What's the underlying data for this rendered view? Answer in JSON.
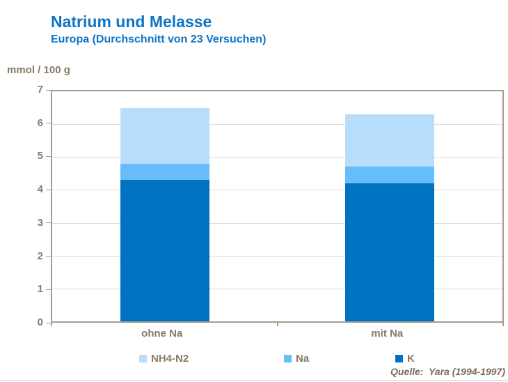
{
  "header": {
    "title": "Natrium und Melasse",
    "subtitle": "Europa (Durchschnitt von 23 Versuchen)"
  },
  "source_note": "Quelle:  Yara (1994-1997)",
  "colors": {
    "title_text": "#0E74C6",
    "axis_text": "#8A7966",
    "source_text": "#7A695A",
    "plot_border": "#A79C8E",
    "gridline": "#DBDBDB"
  },
  "legend": {
    "position": "bottom",
    "items": [
      {
        "label": "NH4-N2",
        "color": "#B8DDFB"
      },
      {
        "label": "Na",
        "color": "#66BDFA"
      },
      {
        "label": "K",
        "color": "#0072C1"
      }
    ]
  },
  "chart_data": {
    "type": "bar",
    "stacked": true,
    "title": "Natrium und Melasse",
    "subtitle": "Europa (Durchschnitt von 23 Versuchen)",
    "ylabel": "mmol / 100 g",
    "xlabel": "",
    "ylim": [
      0,
      7
    ],
    "yticks": [
      0,
      1,
      2,
      3,
      4,
      5,
      6,
      7
    ],
    "grid": true,
    "legend_position": "bottom",
    "categories": [
      "ohne Na",
      "mit Na"
    ],
    "series": [
      {
        "name": "K",
        "color": "#0072C1",
        "values": [
          4.3,
          4.2
        ]
      },
      {
        "name": "Na",
        "color": "#66BDFA",
        "values": [
          0.5,
          0.5
        ]
      },
      {
        "name": "NH4-N2",
        "color": "#B8DDFB",
        "values": [
          1.7,
          1.6
        ]
      }
    ],
    "stack_totals": [
      6.5,
      6.3
    ]
  }
}
